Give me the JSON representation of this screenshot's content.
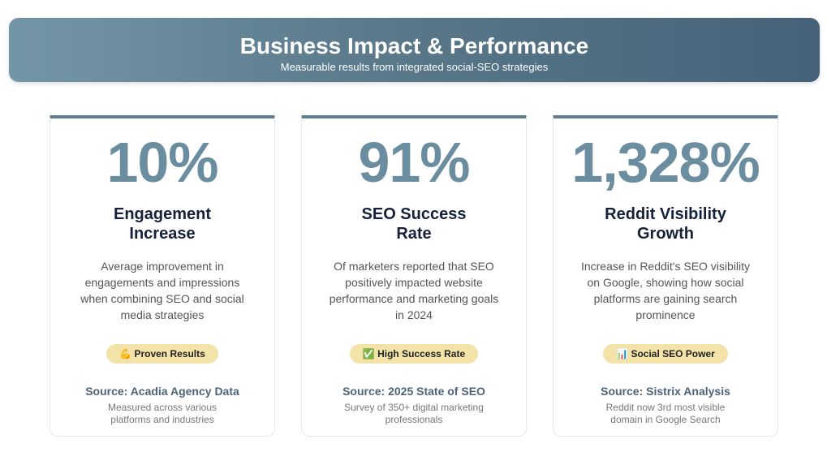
{
  "header": {
    "title": "Business Impact & Performance",
    "subtitle": "Measurable results from integrated social-SEO strategies"
  },
  "cards": [
    {
      "stat": "10%",
      "title": "Engagement\nIncrease",
      "description": "Average improvement in engagements and impressions when combining SEO and social media strategies",
      "badge": "💪 Proven Results",
      "source": "Source: Acadia Agency Data",
      "note": "Measured across various platforms and industries"
    },
    {
      "stat": "91%",
      "title": "SEO Success\nRate",
      "description": "Of marketers reported that SEO positively impacted website performance and marketing goals in 2024",
      "badge": "✅ High Success Rate",
      "source": "Source: 2025 State of SEO",
      "note": "Survey of 350+ digital marketing professionals"
    },
    {
      "stat": "1,328%",
      "title": "Reddit Visibility\nGrowth",
      "description": "Increase in Reddit's SEO visibility on Google, showing how social platforms are gaining search prominence",
      "badge": "📊 Social SEO Power",
      "source": "Source: Sistrix Analysis",
      "note": "Reddit now 3rd most visible domain in Google Search"
    }
  ]
}
